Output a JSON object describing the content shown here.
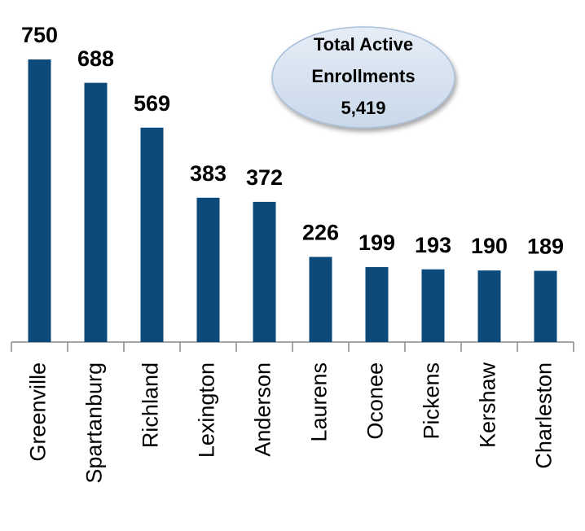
{
  "chart_data": {
    "type": "bar",
    "categories": [
      "Greenville",
      "Spartanburg",
      "Richland",
      "Lexington",
      "Anderson",
      "Laurens",
      "Oconee",
      "Pickens",
      "Kershaw",
      "Charleston"
    ],
    "values": [
      750,
      688,
      569,
      383,
      372,
      226,
      199,
      193,
      190,
      189
    ],
    "color": "#0b4a7a",
    "annotation": [
      "Total Active",
      "Enrollments",
      "5,419"
    ]
  }
}
